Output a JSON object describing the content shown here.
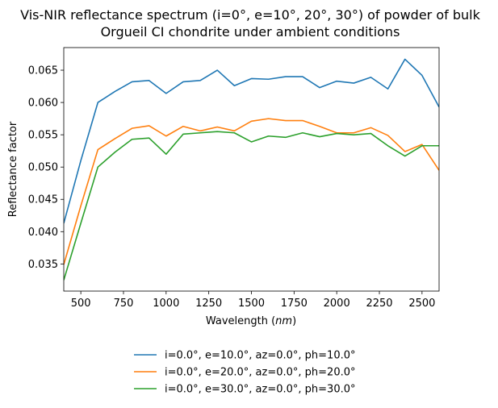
{
  "chart_data": {
    "type": "line",
    "title_line1": "Vis-NIR reflectance spectrum (i=0°, e=10°, 20°, 30°) of powder of bulk",
    "title_line2": "Orgueil CI chondrite under ambient conditions",
    "xlabel_prefix": "Wavelength (",
    "xlabel_unit": "nm",
    "xlabel_suffix": ")",
    "ylabel": "Reflectance factor",
    "xlim": [
      400,
      2600
    ],
    "ylim": [
      0.0308,
      0.0685
    ],
    "xticks": [
      500,
      750,
      1000,
      1250,
      1500,
      1750,
      2000,
      2250,
      2500
    ],
    "yticks": [
      0.035,
      0.04,
      0.045,
      0.05,
      0.055,
      0.06,
      0.065
    ],
    "ytick_labels": [
      "0.035",
      "0.040",
      "0.045",
      "0.050",
      "0.055",
      "0.060",
      "0.065"
    ],
    "grid": false,
    "legend_placement": "below plot, centered",
    "x": [
      400,
      500,
      600,
      700,
      800,
      900,
      1000,
      1100,
      1200,
      1300,
      1400,
      1500,
      1600,
      1700,
      1800,
      1900,
      2000,
      2100,
      2200,
      2300,
      2400,
      2500,
      2600
    ],
    "series": [
      {
        "name": "i=0.0°, e=10.0°, az=0.0°, ph=10.0°",
        "color": "#1f77b4",
        "values": [
          0.0413,
          0.051,
          0.06,
          0.0617,
          0.0632,
          0.0634,
          0.0614,
          0.0632,
          0.0634,
          0.065,
          0.0626,
          0.0637,
          0.0636,
          0.064,
          0.064,
          0.0623,
          0.0633,
          0.063,
          0.0639,
          0.0621,
          0.0667,
          0.0642,
          0.0593
        ]
      },
      {
        "name": "i=0.0°, e=20.0°, az=0.0°, ph=20.0°",
        "color": "#ff7f0e",
        "values": [
          0.0349,
          0.044,
          0.0527,
          0.0544,
          0.056,
          0.0564,
          0.0548,
          0.0563,
          0.0556,
          0.0562,
          0.0556,
          0.0571,
          0.0575,
          0.0572,
          0.0572,
          0.0563,
          0.0553,
          0.0553,
          0.0561,
          0.0549,
          0.0524,
          0.0535,
          0.0495
        ]
      },
      {
        "name": "i=0.0°, e=30.0°, az=0.0°, ph=30.0°",
        "color": "#2ca02c",
        "values": [
          0.0325,
          0.0413,
          0.05,
          0.0523,
          0.0543,
          0.0545,
          0.052,
          0.0551,
          0.0553,
          0.0555,
          0.0553,
          0.0539,
          0.0548,
          0.0546,
          0.0553,
          0.0547,
          0.0552,
          0.055,
          0.0552,
          0.0533,
          0.0517,
          0.0533,
          0.0533
        ]
      }
    ]
  }
}
